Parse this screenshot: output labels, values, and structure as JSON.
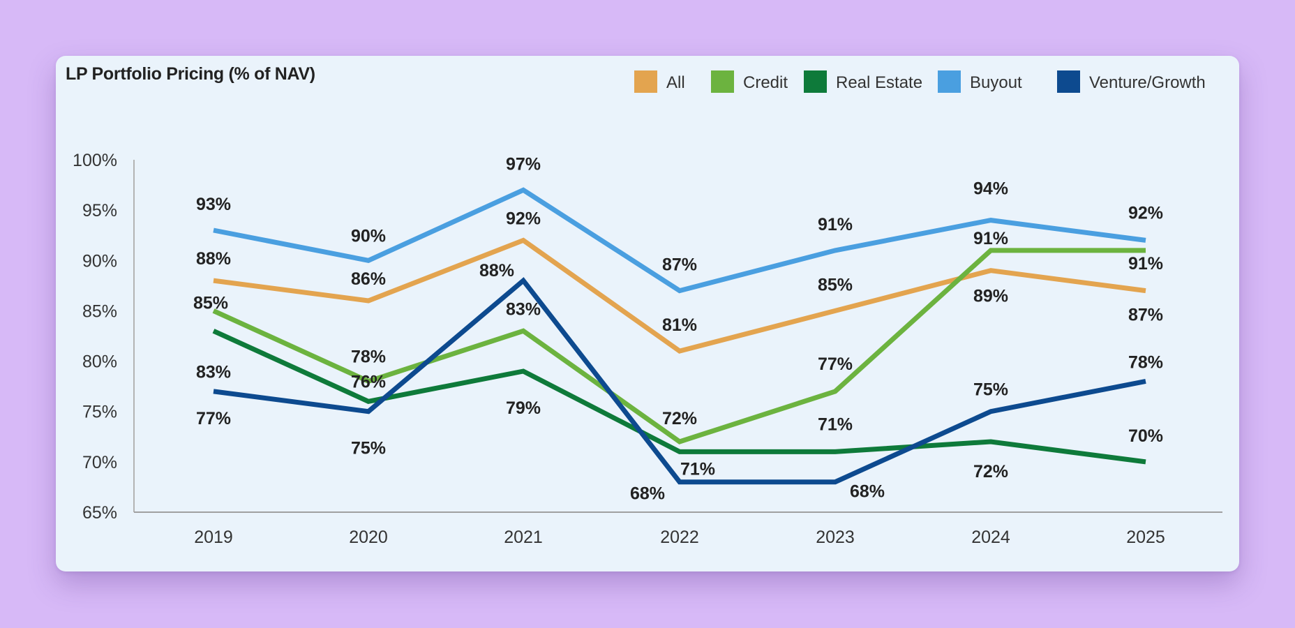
{
  "chart_data": {
    "type": "line",
    "title": "LP Portfolio Pricing (% of NAV)",
    "x": [
      "2019",
      "2020",
      "2021",
      "2022",
      "2023",
      "2024",
      "2025"
    ],
    "ylim": [
      65,
      100
    ],
    "yticks": [
      65,
      70,
      75,
      80,
      85,
      90,
      95,
      100
    ],
    "ytick_labels": [
      "65%",
      "70%",
      "75%",
      "80%",
      "85%",
      "90%",
      "95%",
      "100%"
    ],
    "grid": false,
    "legend_position": "top-right",
    "series": [
      {
        "name": "All",
        "color": "#e3a44f",
        "values": [
          88,
          86,
          92,
          81,
          85,
          89,
          87
        ],
        "labels": [
          "88%",
          "86%",
          "92%",
          "81%",
          "85%",
          "89%",
          "87%"
        ]
      },
      {
        "name": "Credit",
        "color": "#6cb33f",
        "values": [
          85,
          78,
          83,
          72,
          77,
          91,
          91
        ],
        "labels": [
          "85%",
          "78%",
          "83%",
          "72%",
          "77%",
          "91%",
          "91%"
        ]
      },
      {
        "name": "Real Estate",
        "color": "#0e7a3a",
        "values": [
          83,
          76,
          79,
          71,
          71,
          72,
          70
        ],
        "labels": [
          "83%",
          "76%",
          "79%",
          "71%",
          "71%",
          "72%",
          "70%"
        ]
      },
      {
        "name": "Buyout",
        "color": "#4a9fe0",
        "values": [
          93,
          90,
          97,
          87,
          91,
          94,
          92
        ],
        "labels": [
          "93%",
          "90%",
          "97%",
          "87%",
          "91%",
          "94%",
          "92%"
        ]
      },
      {
        "name": "Venture/Growth",
        "color": "#0d4a8f",
        "values": [
          77,
          75,
          88,
          68,
          68,
          75,
          78
        ],
        "labels": [
          "77%",
          "75%",
          "88%",
          "68%",
          "68%",
          "75%",
          "78%"
        ]
      }
    ]
  }
}
